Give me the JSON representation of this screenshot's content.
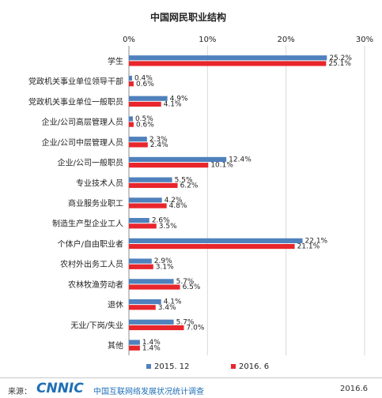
{
  "chart_data": {
    "type": "bar",
    "orientation": "horizontal",
    "title": "中国网民职业结构",
    "categories": [
      "学生",
      "党政机关事业单位领导干部",
      "党政机关事业单位一般职员",
      "企业/公司高层管理人员",
      "企业/公司中层管理人员",
      "企业/公司一般职员",
      "专业技术人员",
      "商业服务业职工",
      "制造生产型企业工人",
      "个体户/自由职业者",
      "农村外出务工人员",
      "农林牧渔劳动者",
      "退休",
      "无业/下岗/失业",
      "其他"
    ],
    "series": [
      {
        "name": "2015. 12",
        "color": "#4f81bd",
        "values": [
          25.2,
          0.4,
          4.9,
          0.5,
          2.3,
          12.4,
          5.5,
          4.2,
          2.6,
          22.1,
          2.9,
          5.7,
          4.1,
          5.7,
          1.4
        ],
        "labels": [
          "25.2%",
          "0.4%",
          "4.9%",
          "0.5%",
          "2.3%",
          "12.4%",
          "5.5%",
          "4.2%",
          "2.6%",
          "22.1%",
          "2.9%",
          "5.7%",
          "4.1%",
          "5.7%",
          "1.4%"
        ]
      },
      {
        "name": "2016. 6",
        "color": "#e8262c",
        "values": [
          25.1,
          0.6,
          4.1,
          0.6,
          2.4,
          10.1,
          6.2,
          4.8,
          3.5,
          21.1,
          3.1,
          6.5,
          3.4,
          7.0,
          1.4
        ],
        "labels": [
          "25.1%",
          "0.6%",
          "4.1%",
          "0.6%",
          "2.4%",
          "10.1%",
          "6.2%",
          "4.8%",
          "3.5%",
          "21.1%",
          "3.1%",
          "6.5%",
          "3.4%",
          "7.0%",
          "1.4%"
        ]
      }
    ],
    "xlim": [
      0,
      30
    ],
    "xticks": [
      0,
      10,
      20,
      30
    ],
    "xtick_labels": [
      "0%",
      "10%",
      "20%",
      "30%"
    ],
    "axis_position": "top",
    "grid": true,
    "legend_position": "bottom-center"
  },
  "footer": {
    "source_label": "来源：",
    "logo_text": "CNNIC",
    "survey_name": "中国互联网络发展状况统计调查",
    "date": "2016.6"
  }
}
